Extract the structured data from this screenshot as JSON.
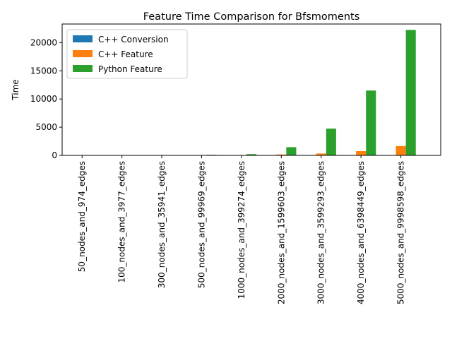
{
  "chart_data": {
    "type": "bar",
    "title": "Feature Time Comparison for Bfsmoments",
    "xlabel": "",
    "ylabel": "Time",
    "ylim": [
      0,
      23300
    ],
    "yticks": [
      0,
      5000,
      10000,
      15000,
      20000
    ],
    "grid": false,
    "legend_position": "top-left",
    "categories": [
      "50_nodes_and_974_edges",
      "100_nodes_and_3977_edges",
      "300_nodes_and_35941_edges",
      "500_nodes_and_99969_edges",
      "1000_nodes_and_399274_edges",
      "2000_nodes_and_1599603_edges",
      "3000_nodes_and_3599293_edges",
      "4000_nodes_and_6398449_edges",
      "5000_nodes_and_9998598_edges"
    ],
    "series": [
      {
        "name": "C++ Conversion",
        "color": "#1f77b4",
        "values": [
          0,
          0,
          0,
          1,
          3,
          10,
          20,
          35,
          55
        ]
      },
      {
        "name": "C++ Feature",
        "color": "#ff7f0e",
        "values": [
          0,
          1,
          3,
          10,
          40,
          160,
          330,
          750,
          1650
        ]
      },
      {
        "name": "Python Feature",
        "color": "#2ca02c",
        "values": [
          1,
          8,
          40,
          100,
          220,
          1450,
          4750,
          11500,
          22250
        ]
      }
    ]
  }
}
